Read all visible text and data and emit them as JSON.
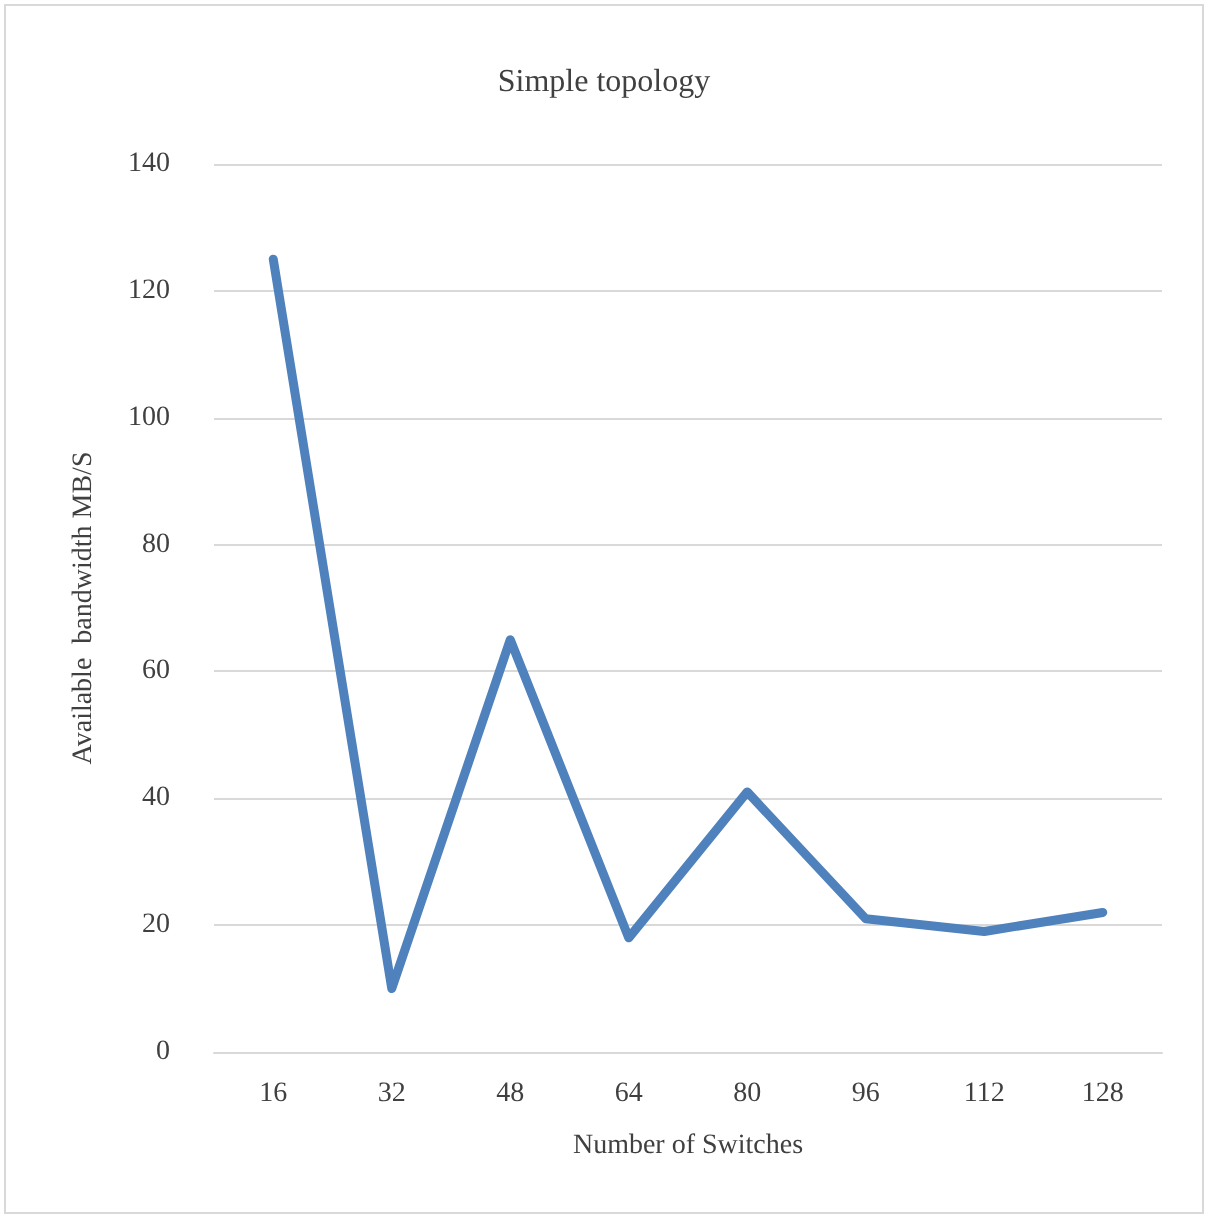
{
  "chart_data": {
    "type": "line",
    "title": "Simple topology",
    "xlabel": "Number of Switches",
    "ylabel": "Available  bandwidth MB/S",
    "categories": [
      "16",
      "32",
      "48",
      "64",
      "80",
      "96",
      "112",
      "128"
    ],
    "series": [
      {
        "color": "#4f81bd",
        "values": [
          125,
          10,
          65,
          18,
          41,
          21,
          19,
          22
        ]
      }
    ],
    "ylim": [
      0,
      140
    ],
    "yticks": [
      0,
      20,
      40,
      60,
      80,
      100,
      120,
      140
    ],
    "grid": "y",
    "marker": "none",
    "line_style": "solid"
  }
}
